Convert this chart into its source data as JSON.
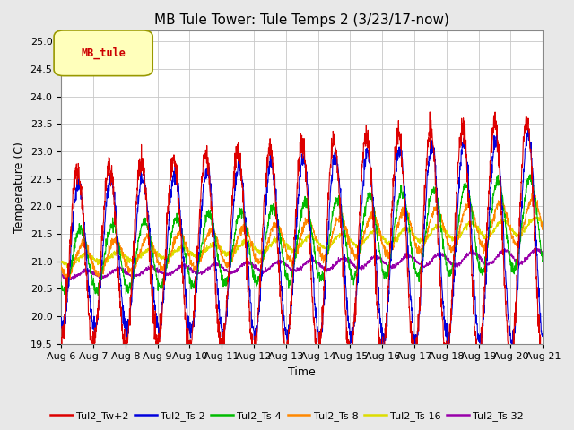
{
  "title": "MB Tule Tower: Tule Temps 2 (3/23/17-now)",
  "xlabel": "Time",
  "ylabel": "Temperature (C)",
  "ylim": [
    19.5,
    25.2
  ],
  "xlim_days": [
    0,
    15
  ],
  "x_tick_labels": [
    "Aug 6",
    "Aug 7",
    "Aug 8",
    "Aug 9",
    "Aug 10",
    "Aug 11",
    "Aug 12",
    "Aug 13",
    "Aug 14",
    "Aug 15",
    "Aug 16",
    "Aug 17",
    "Aug 18",
    "Aug 19",
    "Aug 20",
    "Aug 21"
  ],
  "legend_label": "MB_tule",
  "series_labels": [
    "Tul2_Tw+2",
    "Tul2_Ts-2",
    "Tul2_Ts-4",
    "Tul2_Ts-8",
    "Tul2_Ts-16",
    "Tul2_Ts-32"
  ],
  "series_colors": [
    "#dd0000",
    "#0000dd",
    "#00bb00",
    "#ff8800",
    "#dddd00",
    "#9900aa"
  ],
  "background_color": "#e8e8e8",
  "plot_bg_color": "#ffffff",
  "grid_color": "#c8c8c8",
  "title_fontsize": 11,
  "label_fontsize": 9,
  "tick_fontsize": 8
}
